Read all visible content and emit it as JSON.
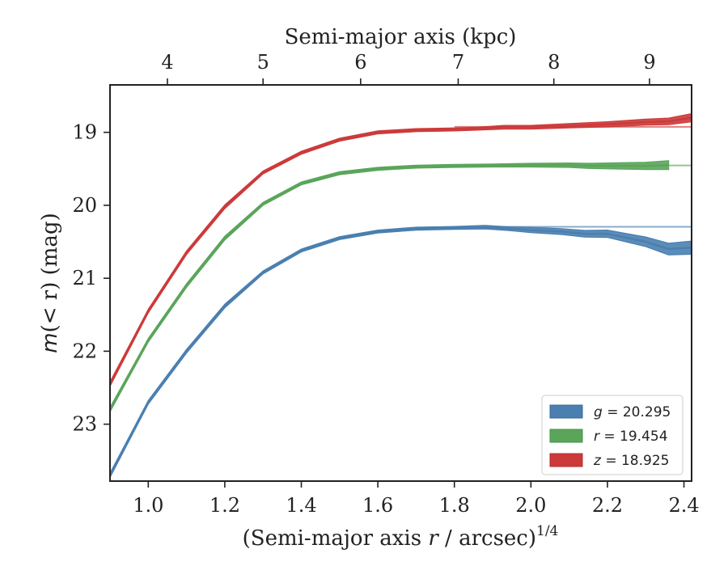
{
  "chart_data": {
    "type": "line",
    "xlabel_main": "(Semi-major axis ",
    "xlabel_var": "r",
    "xlabel_tail": " / arcsec)",
    "xlabel_sup": "1/4",
    "xlabel_top": "Semi-major axis (kpc)",
    "ylabel_main": "m",
    "ylabel_tail": "(< r) (mag)",
    "xlim": [
      0.9,
      2.42
    ],
    "ylim": [
      23.78,
      18.35
    ],
    "y_inverted": true,
    "xticks": [
      1.0,
      1.2,
      1.4,
      1.6,
      1.8,
      2.0,
      2.2,
      2.4
    ],
    "xtick_labels": [
      "1.0",
      "1.2",
      "1.4",
      "1.6",
      "1.8",
      "2.0",
      "2.2",
      "2.4"
    ],
    "yticks": [
      19,
      20,
      21,
      22,
      23
    ],
    "ytick_labels": [
      "19",
      "20",
      "21",
      "22",
      "23"
    ],
    "top_ticks_kpc": [
      4,
      5,
      6,
      7,
      8,
      9
    ],
    "top_tick_labels": [
      "4",
      "5",
      "6",
      "7",
      "8",
      "9"
    ],
    "top_tick_positions_x": [
      1.05,
      1.3,
      1.555,
      1.81,
      2.06,
      2.31
    ],
    "legend_position": "lower-right",
    "series": [
      {
        "name": "g = 20.295",
        "color": "#4a7fb0",
        "asymptote": 20.295,
        "x": [
          0.9,
          1.0,
          1.1,
          1.2,
          1.3,
          1.4,
          1.5,
          1.6,
          1.7,
          1.8,
          1.88,
          1.94,
          2.0,
          2.08,
          2.14,
          2.2,
          2.3,
          2.36,
          2.42
        ],
        "y": [
          23.7,
          22.7,
          22.0,
          21.38,
          20.92,
          20.62,
          20.45,
          20.36,
          20.32,
          20.31,
          20.3,
          20.32,
          20.34,
          20.36,
          20.39,
          20.39,
          20.5,
          20.6,
          20.58
        ],
        "width": [
          0.06,
          0.05,
          0.05,
          0.05,
          0.04,
          0.04,
          0.04,
          0.04,
          0.04,
          0.04,
          0.05,
          0.05,
          0.07,
          0.08,
          0.09,
          0.1,
          0.13,
          0.16,
          0.18
        ]
      },
      {
        "name": "r = 19.454",
        "color": "#5aa55a",
        "asymptote": 19.454,
        "x": [
          0.9,
          1.0,
          1.1,
          1.2,
          1.3,
          1.4,
          1.5,
          1.6,
          1.7,
          1.8,
          1.9,
          2.0,
          2.1,
          2.15,
          2.2,
          2.3,
          2.36
        ],
        "y": [
          22.8,
          21.85,
          21.1,
          20.45,
          19.98,
          19.7,
          19.56,
          19.5,
          19.47,
          19.46,
          19.455,
          19.45,
          19.45,
          19.46,
          19.46,
          19.46,
          19.45
        ],
        "width": [
          0.06,
          0.05,
          0.05,
          0.05,
          0.04,
          0.04,
          0.04,
          0.04,
          0.04,
          0.04,
          0.04,
          0.05,
          0.06,
          0.07,
          0.08,
          0.1,
          0.12
        ]
      },
      {
        "name": "z = 18.925",
        "color": "#cc3a3a",
        "asymptote": 18.925,
        "x": [
          0.9,
          1.0,
          1.1,
          1.2,
          1.3,
          1.4,
          1.5,
          1.6,
          1.7,
          1.8,
          1.86,
          1.93,
          2.0,
          2.1,
          2.2,
          2.3,
          2.36,
          2.42
        ],
        "y": [
          22.45,
          21.45,
          20.65,
          20.02,
          19.55,
          19.28,
          19.1,
          19.0,
          18.97,
          18.96,
          18.95,
          18.93,
          18.93,
          18.91,
          18.89,
          18.86,
          18.85,
          18.8
        ],
        "width": [
          0.06,
          0.05,
          0.05,
          0.05,
          0.04,
          0.04,
          0.04,
          0.04,
          0.04,
          0.04,
          0.04,
          0.05,
          0.05,
          0.06,
          0.07,
          0.08,
          0.09,
          0.11
        ]
      }
    ]
  },
  "legend": [
    {
      "var": "g",
      "text": " = 20.295",
      "color": "#4a7fb0"
    },
    {
      "var": "r",
      "text": " = 19.454",
      "color": "#5aa55a"
    },
    {
      "var": "z",
      "text": " = 18.925",
      "color": "#cc3a3a"
    }
  ]
}
